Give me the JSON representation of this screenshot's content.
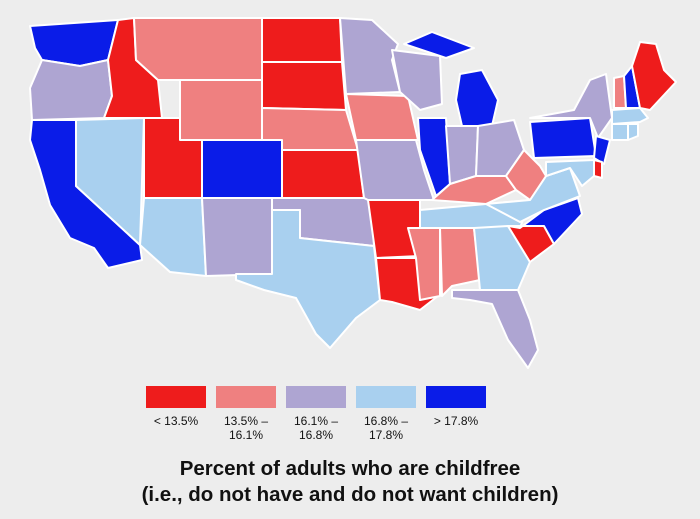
{
  "caption": {
    "line1": "Percent of adults who are childfree",
    "line2": "(i.e., do not have and do not want children)"
  },
  "legend": [
    {
      "label": "< 13.5%",
      "color": "#ee1c1c",
      "class": "c1"
    },
    {
      "label": "13.5% –\n16.1%",
      "color": "#ef8080",
      "class": "c2"
    },
    {
      "label": "16.1% –\n16.8%",
      "color": "#aea5d2",
      "class": "c3"
    },
    {
      "label": "16.8% –\n17.8%",
      "color": "#a9d0ef",
      "class": "c4"
    },
    {
      "label": "> 17.8%",
      "color": "#0a1ce8",
      "class": "c5"
    }
  ],
  "states": {
    "WA": "c5",
    "OR": "c3",
    "CA": "c5",
    "ID": "c1",
    "NV": "c4",
    "MT": "c2",
    "WY": "c2",
    "UT": "c1",
    "AZ": "c4",
    "CO": "c5",
    "NM": "c3",
    "ND": "c1",
    "SD": "c1",
    "NE": "c2",
    "KS": "c1",
    "OK": "c3",
    "TX": "c4",
    "MN": "c3",
    "IA": "c2",
    "MO": "c3",
    "AR": "c1",
    "LA": "c1",
    "WI": "c3",
    "IL": "c5",
    "MI": "c5",
    "IN": "c3",
    "OH": "c3",
    "KY": "c2",
    "TN": "c4",
    "MS": "c2",
    "AL": "c2",
    "GA": "c4",
    "FL": "c3",
    "SC": "c1",
    "NC": "c5",
    "VA": "c4",
    "WV": "c2",
    "PA": "c5",
    "NY": "c3",
    "VT": "c2",
    "NH": "c5",
    "ME": "c1",
    "MA": "c4",
    "CT": "c4",
    "RI": "c4",
    "NJ": "c5",
    "DE": "c1",
    "MD": "c4"
  }
}
